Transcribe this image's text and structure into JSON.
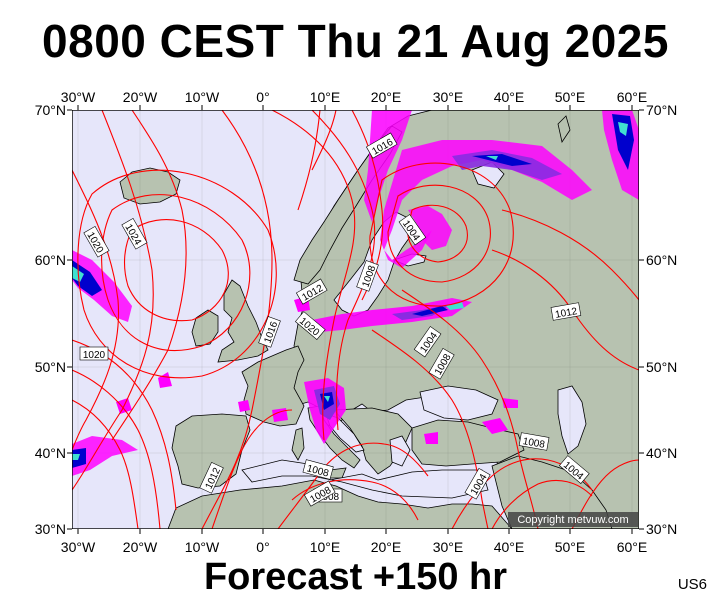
{
  "header": {
    "title": "0800 CEST Thu 21 Aug 2025"
  },
  "footer": {
    "forecast": "Forecast +150 hr",
    "code": "US6"
  },
  "map": {
    "longitude_labels": [
      "30°W",
      "20°W",
      "10°W",
      "0°",
      "10°E",
      "20°E",
      "30°E",
      "40°E",
      "50°E",
      "60°E"
    ],
    "latitude_labels": [
      "70°N",
      "60°N",
      "50°N",
      "40°N",
      "30°N"
    ],
    "isobar_labels": [
      "1016",
      "1020",
      "1024",
      "1020",
      "1020",
      "1016",
      "1012",
      "1008",
      "1004",
      "1008",
      "1004",
      "1008",
      "1012",
      "1008",
      "1004",
      "1012",
      "1008",
      "1008",
      "1004"
    ],
    "copyright": "Copyright metvuw.com",
    "colors": {
      "ocean": "#e6e6fa",
      "land": "#b7c2b0",
      "isobar": "#ff0000",
      "rain_light": "#ff00ff",
      "rain_medium": "#8a2be2",
      "rain_heavy": "#0000cd",
      "rain_extreme": "#40e0d0"
    }
  }
}
